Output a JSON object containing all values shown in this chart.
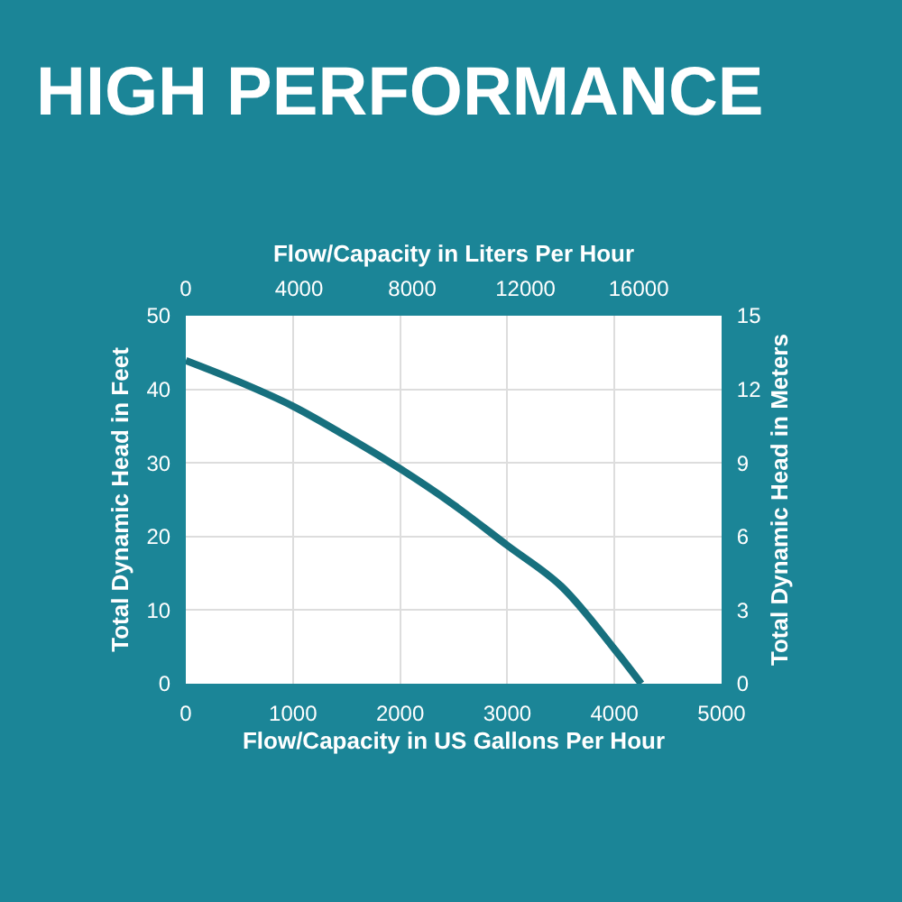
{
  "chart_data": {
    "type": "line",
    "title": "HIGH PERFORMANCE",
    "xlabel": "Flow/Capacity in US Gallons Per Hour",
    "ylabel": "Total Dynamic Head in Feet",
    "x2label": "Flow/Capacity in Liters Per Hour",
    "y2label": "Total Dynamic Head in Meters",
    "series": [
      {
        "color": "#17707e",
        "x": [
          0,
          500,
          1000,
          1500,
          2000,
          2500,
          3000,
          3500,
          4000,
          4250
        ],
        "values": [
          43.9,
          41,
          37.7,
          33.6,
          29.2,
          24.3,
          18.8,
          13.3,
          4.7,
          0
        ]
      }
    ],
    "xlim": [
      0,
      5000
    ],
    "xticks": [
      0,
      1000,
      2000,
      3000,
      4000,
      5000
    ],
    "ylim": [
      0,
      50
    ],
    "yticks": [
      0,
      10,
      20,
      30,
      40,
      50
    ],
    "x2lim": [
      0,
      18927
    ],
    "x2ticks": [
      0,
      4000,
      8000,
      12000,
      16000
    ],
    "y2lim": [
      0,
      15
    ],
    "y2ticks": [
      0,
      3,
      6,
      9,
      12,
      15
    ],
    "grid": true,
    "marker": "none",
    "line_style": "solid"
  }
}
